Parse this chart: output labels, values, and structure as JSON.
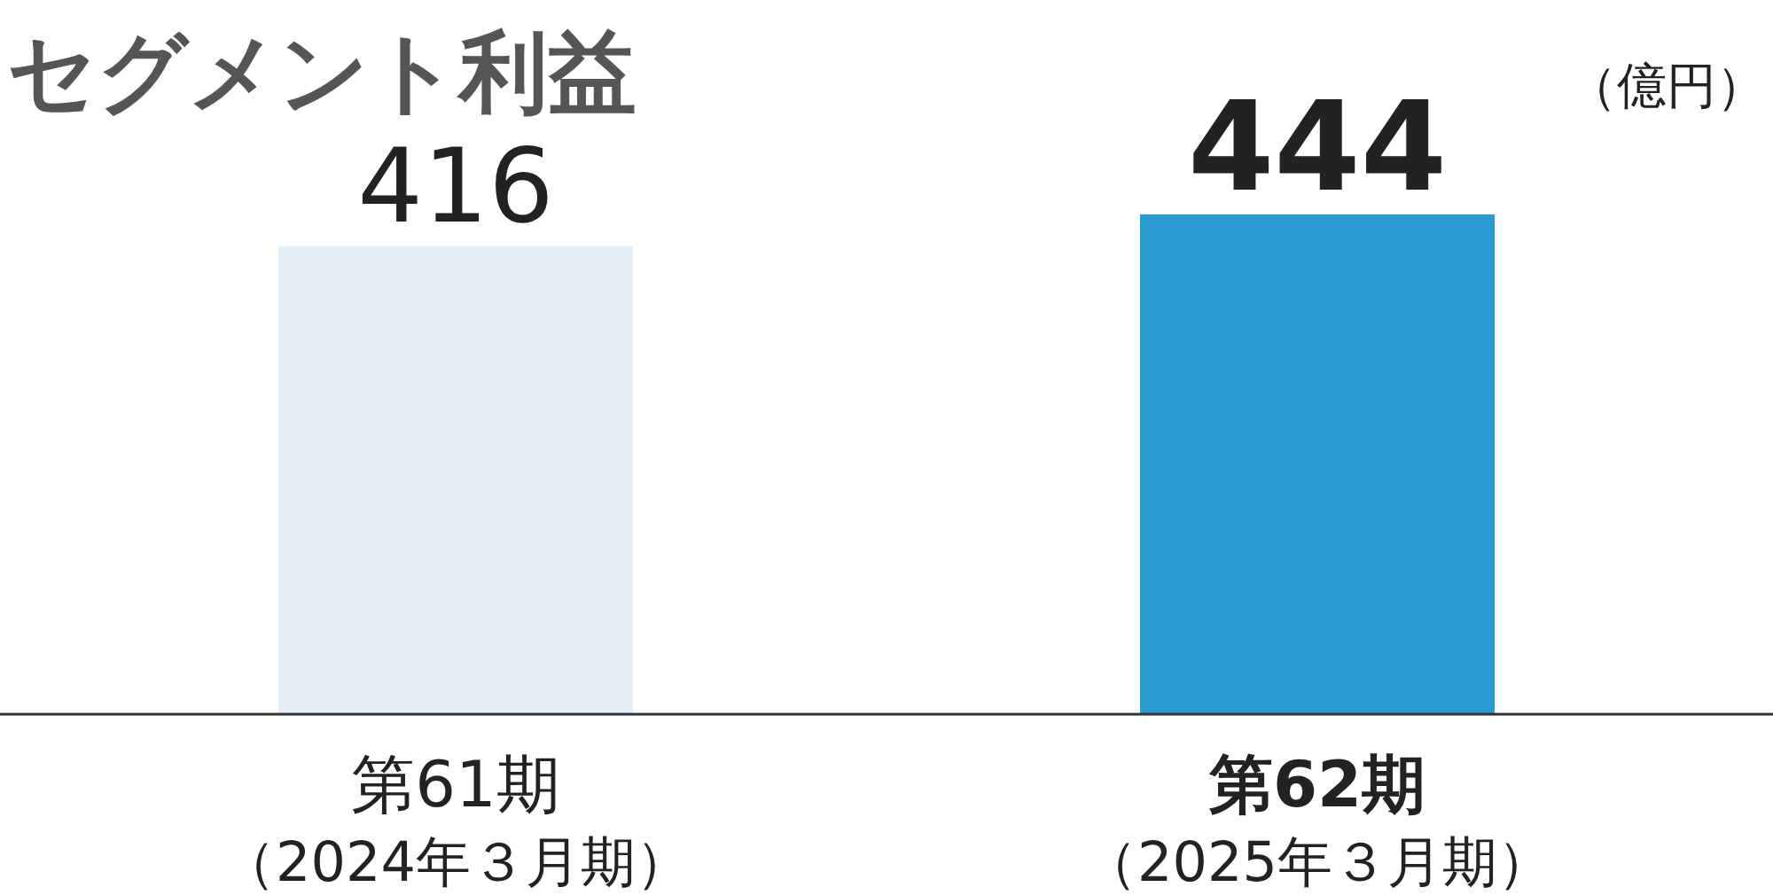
{
  "chart_data": {
    "type": "bar",
    "title": "セグメント利益",
    "ylabel": "（億円）",
    "categories": [
      "第61期（2024年３月期）",
      "第62期（2025年３月期）"
    ],
    "values": [
      416,
      444
    ],
    "colors": [
      "#e6eef7",
      "#2a9ad3"
    ],
    "data_labels": true
  }
}
